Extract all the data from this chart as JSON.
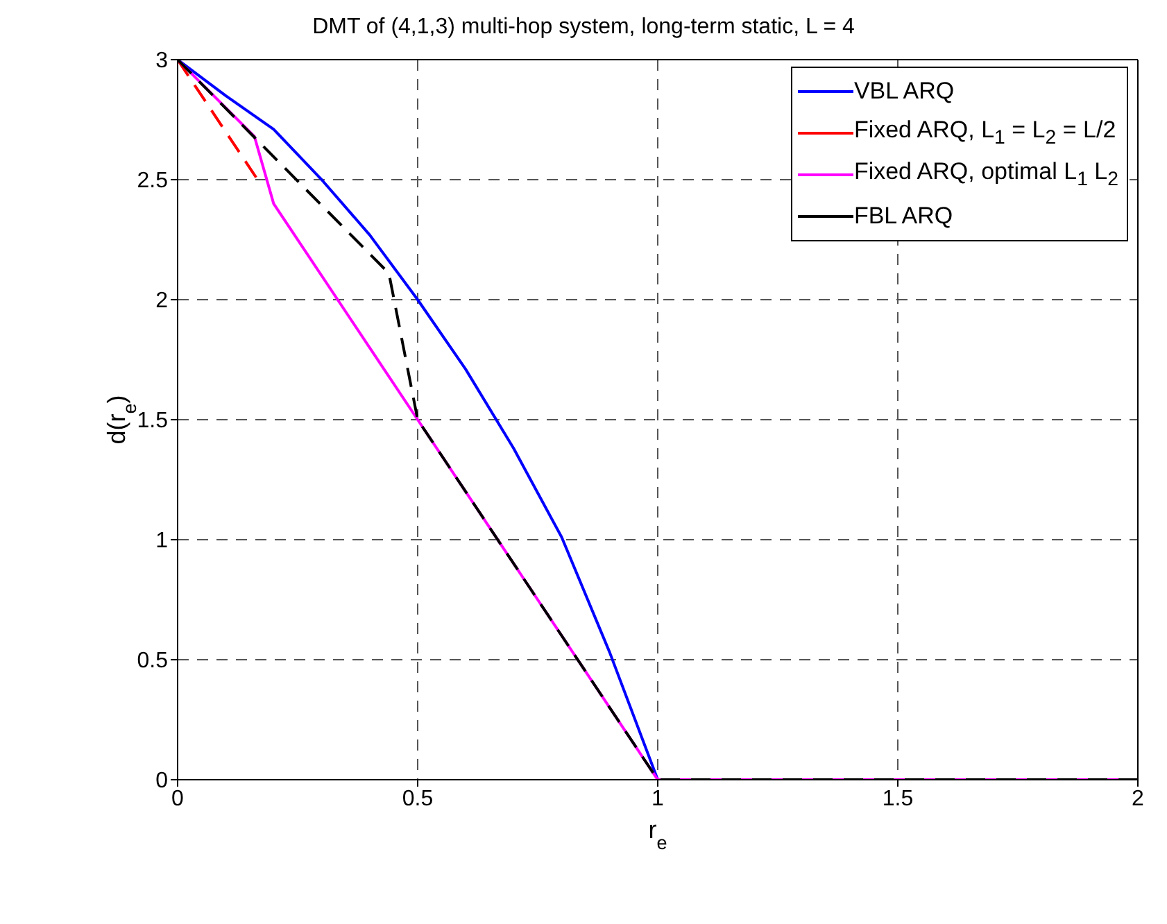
{
  "chart_data": {
    "type": "line",
    "title": "DMT of (4,1,3) multi-hop system, long-term static, L = 4",
    "xlabel": "r$_{e}$",
    "ylabel": "d(r$_{e}$)",
    "xlim": [
      0,
      2
    ],
    "xticks": [
      0,
      0.5,
      1,
      1.5,
      2
    ],
    "ylim": [
      0,
      3
    ],
    "yticks": [
      0,
      0.5,
      1,
      1.5,
      2,
      2.5,
      3
    ],
    "grid": true,
    "legend": "top right",
    "marker": "none",
    "series": [
      {
        "name": "VBL ARQ",
        "color": "#0000ff",
        "line_style": "solid",
        "x": [
          0,
          0.1,
          0.2,
          0.3,
          0.4,
          0.5,
          0.6,
          0.7,
          0.8,
          0.9,
          1,
          2
        ],
        "values": [
          3,
          2.85,
          2.71,
          2.5,
          2.27,
          2,
          1.71,
          1.38,
          1.01,
          0.53,
          0,
          0
        ]
      },
      {
        "name": "Fixed ARQ, L$_{1}$ = L$_{2}$ = L/2",
        "color": "#ff0000",
        "line_style": "dashed",
        "x": [
          0,
          0.17
        ],
        "values": [
          3,
          2.49
        ]
      },
      {
        "name": "Fixed ARQ, optimal L$_{1}$ L$_{2}$",
        "color": "#ff00ff",
        "line_style": "solid",
        "x": [
          0,
          0.16,
          0.2,
          0.5,
          1,
          2
        ],
        "values": [
          3,
          2.68,
          2.4,
          1.5,
          0,
          0
        ]
      },
      {
        "name": "FBL ARQ",
        "color": "#000000",
        "line_style": "dashed",
        "x": [
          0,
          0.44,
          0.5,
          1,
          2
        ],
        "values": [
          3,
          2.11,
          1.5,
          0,
          0
        ]
      }
    ]
  }
}
